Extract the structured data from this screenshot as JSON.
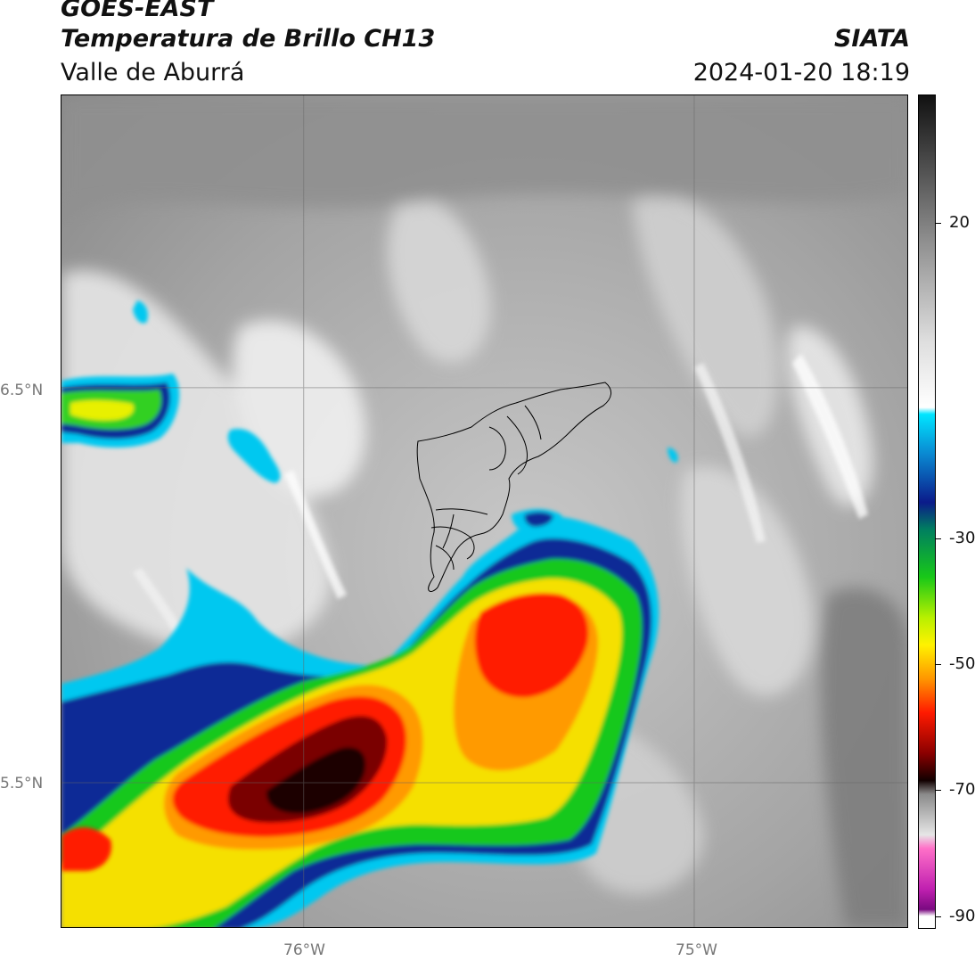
{
  "header": {
    "satellite": "GOES-EAST",
    "product": "Temperatura de Brillo CH13",
    "region": "Valle de Aburrá",
    "organization": "SIATA",
    "timestamp": "2024-01-20 18:19"
  },
  "map": {
    "lon_range": [
      -76.62,
      -74.45
    ],
    "lat_range": [
      5.13,
      7.24
    ],
    "gridlines": true,
    "lon_ticks": [
      {
        "value": -76.0,
        "label": "76°W"
      },
      {
        "value": -75.0,
        "label": "75°W"
      }
    ],
    "lat_ticks": [
      {
        "value": 6.5,
        "label": "6.5°N"
      },
      {
        "value": 5.5,
        "label": "5.5°N"
      }
    ],
    "overlay": "municipal boundaries (black outline)"
  },
  "colorbar": {
    "range": [
      -92,
      31
    ],
    "ticks": [
      {
        "value": 20,
        "label": "20"
      },
      {
        "value": -30,
        "label": "-30"
      },
      {
        "value": -50,
        "label": "-50"
      },
      {
        "value": -70,
        "label": "-70"
      },
      {
        "value": -90,
        "label": "-90"
      }
    ],
    "stops": [
      {
        "value": 31,
        "color": "#111111"
      },
      {
        "value": 10,
        "color": "#8c8c8c"
      },
      {
        "value": -5,
        "color": "#dddddd"
      },
      {
        "value": -15,
        "color": "#ffffff"
      },
      {
        "value": -16,
        "color": "#00e5ff"
      },
      {
        "value": -22,
        "color": "#0a86d0"
      },
      {
        "value": -29,
        "color": "#0b1b8a"
      },
      {
        "value": -33,
        "color": "#007f5f"
      },
      {
        "value": -40,
        "color": "#18c818"
      },
      {
        "value": -46,
        "color": "#b8f000"
      },
      {
        "value": -50,
        "color": "#fff200"
      },
      {
        "value": -55,
        "color": "#ff9600"
      },
      {
        "value": -60,
        "color": "#ff1a00"
      },
      {
        "value": -66,
        "color": "#8a0000"
      },
      {
        "value": -70,
        "color": "#120000"
      },
      {
        "value": -72,
        "color": "#8a8a8a"
      },
      {
        "value": -78,
        "color": "#e6e6e6"
      },
      {
        "value": -80,
        "color": "#ff70c8"
      },
      {
        "value": -86,
        "color": "#c020b0"
      },
      {
        "value": -89,
        "color": "#7a0a80"
      },
      {
        "value": -90,
        "color": "#ffffff"
      },
      {
        "value": -92,
        "color": "#ffffff"
      }
    ]
  }
}
